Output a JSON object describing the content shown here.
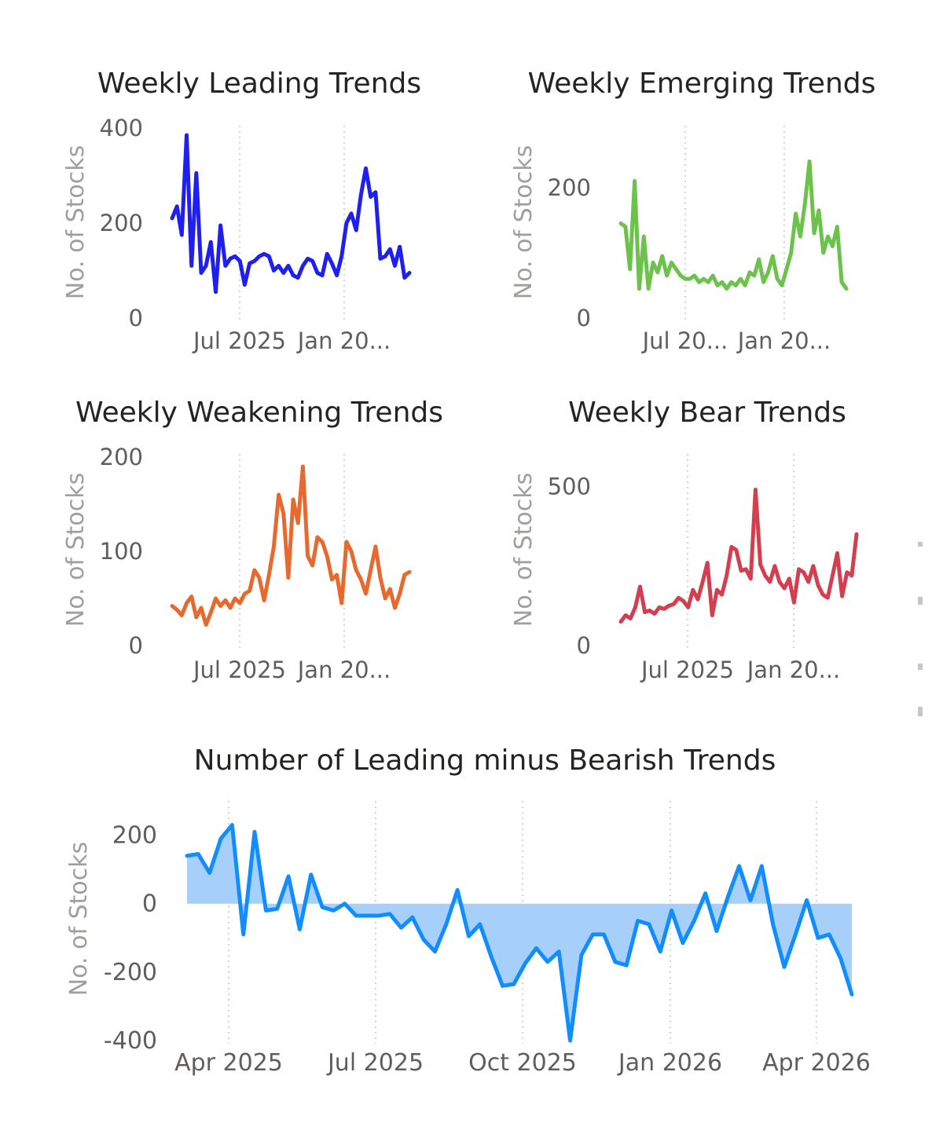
{
  "chart_data": [
    {
      "id": "leading",
      "type": "line",
      "title": "Weekly Leading Trends",
      "ylabel": "No. of Stocks",
      "xlabel": "",
      "color": "#1f1ff0",
      "ylim": [
        0,
        400
      ],
      "yticks": [
        0,
        200,
        400
      ],
      "xtick_labels": [
        "Jul 2025",
        "Jan 20..."
      ],
      "values": [
        210,
        235,
        175,
        385,
        110,
        305,
        95,
        110,
        160,
        55,
        195,
        110,
        125,
        130,
        120,
        70,
        115,
        120,
        130,
        135,
        130,
        100,
        110,
        95,
        110,
        90,
        85,
        110,
        125,
        120,
        95,
        90,
        135,
        115,
        90,
        130,
        200,
        220,
        185,
        260,
        315,
        255,
        265,
        125,
        130,
        145,
        110,
        150,
        85,
        95
      ]
    },
    {
      "id": "emerging",
      "type": "line",
      "title": "Weekly Emerging Trends",
      "ylabel": "No. of Stocks",
      "xlabel": "",
      "color": "#6cc24a",
      "ylim": [
        0,
        290
      ],
      "yticks": [
        0,
        200
      ],
      "xtick_labels": [
        "Jul 20...",
        "Jan 20..."
      ],
      "values": [
        145,
        140,
        75,
        210,
        45,
        125,
        45,
        85,
        70,
        95,
        65,
        85,
        75,
        65,
        60,
        60,
        65,
        55,
        60,
        55,
        65,
        50,
        55,
        45,
        55,
        50,
        60,
        50,
        70,
        65,
        90,
        55,
        70,
        95,
        60,
        50,
        75,
        100,
        160,
        125,
        175,
        240,
        130,
        165,
        100,
        125,
        110,
        140,
        55,
        45
      ]
    },
    {
      "id": "weakening",
      "type": "line",
      "title": "Weekly Weakening Trends",
      "ylabel": "No. of Stocks",
      "xlabel": "",
      "color": "#e8692d",
      "ylim": [
        0,
        200
      ],
      "yticks": [
        0,
        100,
        200
      ],
      "xtick_labels": [
        "Jul 2025",
        "Jan 20..."
      ],
      "values": [
        42,
        38,
        32,
        45,
        52,
        30,
        40,
        22,
        35,
        50,
        42,
        48,
        40,
        50,
        45,
        55,
        58,
        80,
        72,
        48,
        75,
        105,
        160,
        140,
        72,
        155,
        130,
        190,
        95,
        85,
        115,
        110,
        95,
        70,
        75,
        45,
        110,
        100,
        80,
        70,
        55,
        80,
        105,
        72,
        50,
        60,
        40,
        55,
        75,
        78
      ]
    },
    {
      "id": "bear",
      "type": "line",
      "title": "Weekly Bear Trends",
      "ylabel": "No. of Stocks",
      "xlabel": "",
      "color": "#d43f4f",
      "ylim": [
        0,
        580
      ],
      "yticks": [
        0,
        500
      ],
      "xtick_labels": [
        "Jul 2025",
        "Jan 20..."
      ],
      "values": [
        75,
        95,
        85,
        120,
        185,
        105,
        110,
        100,
        120,
        115,
        125,
        130,
        150,
        140,
        120,
        175,
        145,
        200,
        260,
        95,
        175,
        160,
        220,
        310,
        300,
        235,
        240,
        210,
        490,
        255,
        220,
        200,
        250,
        200,
        180,
        210,
        135,
        240,
        230,
        200,
        250,
        190,
        160,
        150,
        220,
        290,
        155,
        230,
        220,
        350
      ]
    },
    {
      "id": "net",
      "type": "area",
      "title": "Number of Leading minus Bearish Trends",
      "ylabel": "No. of Stocks",
      "xlabel": "",
      "color": "#118dff",
      "fill": "#a6d0fa",
      "ylim": [
        -400,
        300
      ],
      "yticks": [
        -400,
        -200,
        0,
        200
      ],
      "xtick_labels": [
        "Apr 2025",
        "Jul 2025",
        "Oct 2025",
        "Jan 2026",
        "Apr 2026"
      ],
      "values": [
        140,
        145,
        90,
        190,
        230,
        -90,
        210,
        -20,
        -15,
        80,
        -75,
        85,
        -10,
        -20,
        0,
        -35,
        -35,
        -35,
        -30,
        -70,
        -40,
        -105,
        -140,
        -60,
        40,
        -95,
        -60,
        -155,
        -240,
        -235,
        -175,
        -130,
        -170,
        -140,
        -400,
        -150,
        -90,
        -90,
        -170,
        -180,
        -50,
        -60,
        -140,
        -20,
        -115,
        -50,
        30,
        -80,
        20,
        110,
        10,
        110,
        -60,
        -185,
        -90,
        10,
        -100,
        -90,
        -160,
        -265
      ]
    }
  ]
}
